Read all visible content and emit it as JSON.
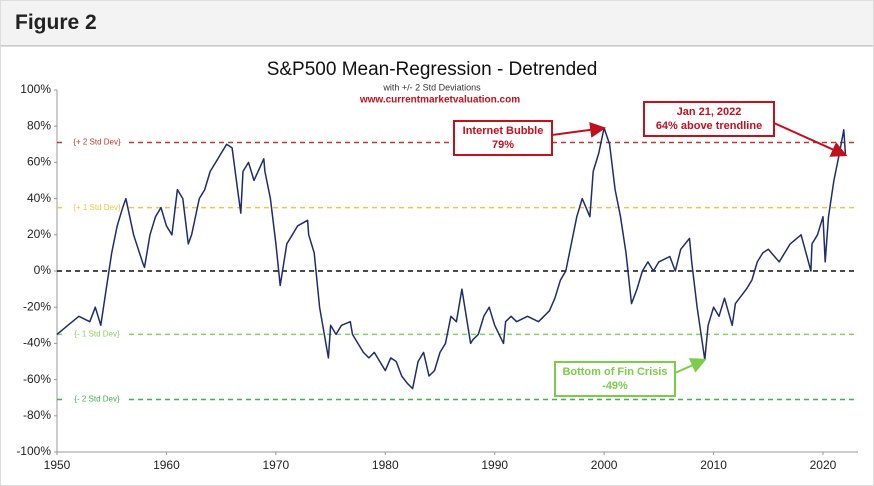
{
  "header": {
    "title": "Figure 2"
  },
  "chart_data": {
    "type": "line",
    "title": "S&P500 Mean-Regression - Detrended",
    "subtitle": "with +/- 2 Std Deviations",
    "source": "www.currentmarketvaluation.com",
    "color": "#1f2d6b",
    "xlim": [
      1950,
      2023.2
    ],
    "xticks": [
      1950,
      1960,
      1970,
      1980,
      1990,
      2000,
      2010,
      2020
    ],
    "ylim": [
      -100,
      100
    ],
    "yticks": [
      {
        "value": -100,
        "label": "-100%"
      },
      {
        "value": -80,
        "label": "-80%"
      },
      {
        "value": -60,
        "label": "-60%"
      },
      {
        "value": -40,
        "label": "-40%"
      },
      {
        "value": -20,
        "label": "-20%"
      },
      {
        "value": 0,
        "label": "0%"
      },
      {
        "value": 20,
        "label": "20%"
      },
      {
        "value": 40,
        "label": "40%"
      },
      {
        "value": 60,
        "label": "60%"
      },
      {
        "value": 80,
        "label": "80%"
      },
      {
        "value": 100,
        "label": "100%"
      }
    ],
    "reference_lines": [
      {
        "label": "{+ 2 Std Dev}",
        "value": 71,
        "color": "#c0392b"
      },
      {
        "label": "{+ 1 Std Dev}",
        "value": 35,
        "color": "#f5c242"
      },
      {
        "value": 0,
        "color": "#111111"
      },
      {
        "label": "{- 1 Std Dev}",
        "value": -35,
        "color": "#8bd05a"
      },
      {
        "label": "{- 2 Std Dev}",
        "value": -71,
        "color": "#3cb54a"
      }
    ],
    "annotations": [
      {
        "lines": [
          "Internet Bubble",
          "79%"
        ],
        "x": 2000,
        "y": 79,
        "color": "#c0111f"
      },
      {
        "lines": [
          "Jan 21, 2022",
          "64% above trendline"
        ],
        "x": 2022.06,
        "y": 64,
        "color": "#c0111f"
      },
      {
        "lines": [
          "Bottom of Fin Crisis",
          "-49%"
        ],
        "x": 2009.2,
        "y": -49,
        "color": "#7ccc4a"
      }
    ],
    "x": [
      1950,
      1951,
      1952,
      1953,
      1953.5,
      1954,
      1954.5,
      1955,
      1955.5,
      1956,
      1956.3,
      1957,
      1957.8,
      1958,
      1958.5,
      1959,
      1959.5,
      1960,
      1960.5,
      1961,
      1961.5,
      1962,
      1962.3,
      1963,
      1963.5,
      1964,
      1964.5,
      1965,
      1965.5,
      1966,
      1966.5,
      1966.8,
      1967,
      1967.5,
      1968,
      1968.9,
      1969,
      1969.5,
      1970,
      1970.4,
      1971,
      1971.5,
      1972,
      1972.9,
      1973,
      1973.5,
      1974,
      1974.8,
      1975,
      1975.5,
      1976,
      1976.8,
      1977,
      1977.5,
      1978,
      1978.5,
      1979,
      1979.5,
      1980,
      1980.5,
      1981,
      1981.5,
      1982,
      1982.5,
      1983,
      1983.5,
      1984,
      1984.5,
      1985,
      1985.5,
      1986,
      1986.5,
      1987,
      1987.8,
      1988,
      1988.5,
      1989,
      1989.5,
      1990,
      1990.8,
      1991,
      1991.5,
      1992,
      1993,
      1994,
      1995,
      1995.5,
      1996,
      1996.5,
      1997,
      1997.5,
      1998,
      1998.7,
      1999,
      1999.5,
      2000,
      2000.5,
      2001,
      2001.5,
      2002,
      2002.5,
      2003,
      2003.5,
      2004,
      2004.5,
      2005,
      2006,
      2006.5,
      2007,
      2007.8,
      2008,
      2008.5,
      2009.2,
      2009.5,
      2010,
      2010.5,
      2011,
      2011.7,
      2012,
      2013,
      2013.5,
      2014,
      2014.5,
      2015,
      2016,
      2016.5,
      2017,
      2018,
      2018.9,
      2019,
      2019.5,
      2020,
      2020.2,
      2020.5,
      2021,
      2021.5,
      2021.9,
      2022.06
    ],
    "values": [
      -35,
      -30,
      -25,
      -28,
      -20,
      -30,
      -10,
      10,
      25,
      35,
      40,
      20,
      5,
      2,
      20,
      30,
      35,
      25,
      20,
      45,
      40,
      15,
      20,
      40,
      45,
      55,
      60,
      65,
      70,
      68,
      45,
      32,
      55,
      60,
      50,
      62,
      55,
      40,
      15,
      -8,
      15,
      20,
      25,
      28,
      20,
      10,
      -20,
      -48,
      -30,
      -35,
      -30,
      -28,
      -35,
      -40,
      -45,
      -48,
      -45,
      -50,
      -55,
      -48,
      -50,
      -58,
      -62,
      -65,
      -50,
      -45,
      -58,
      -55,
      -45,
      -40,
      -25,
      -28,
      -10,
      -40,
      -38,
      -35,
      -25,
      -20,
      -30,
      -40,
      -28,
      -25,
      -28,
      -25,
      -28,
      -22,
      -15,
      -5,
      0,
      15,
      30,
      40,
      30,
      55,
      65,
      79,
      70,
      45,
      30,
      10,
      -18,
      -10,
      0,
      5,
      0,
      5,
      8,
      0,
      12,
      18,
      5,
      -20,
      -49,
      -30,
      -20,
      -25,
      -15,
      -30,
      -18,
      -10,
      -5,
      5,
      10,
      12,
      5,
      10,
      15,
      20,
      0,
      15,
      20,
      30,
      5,
      30,
      50,
      65,
      78,
      64
    ]
  }
}
